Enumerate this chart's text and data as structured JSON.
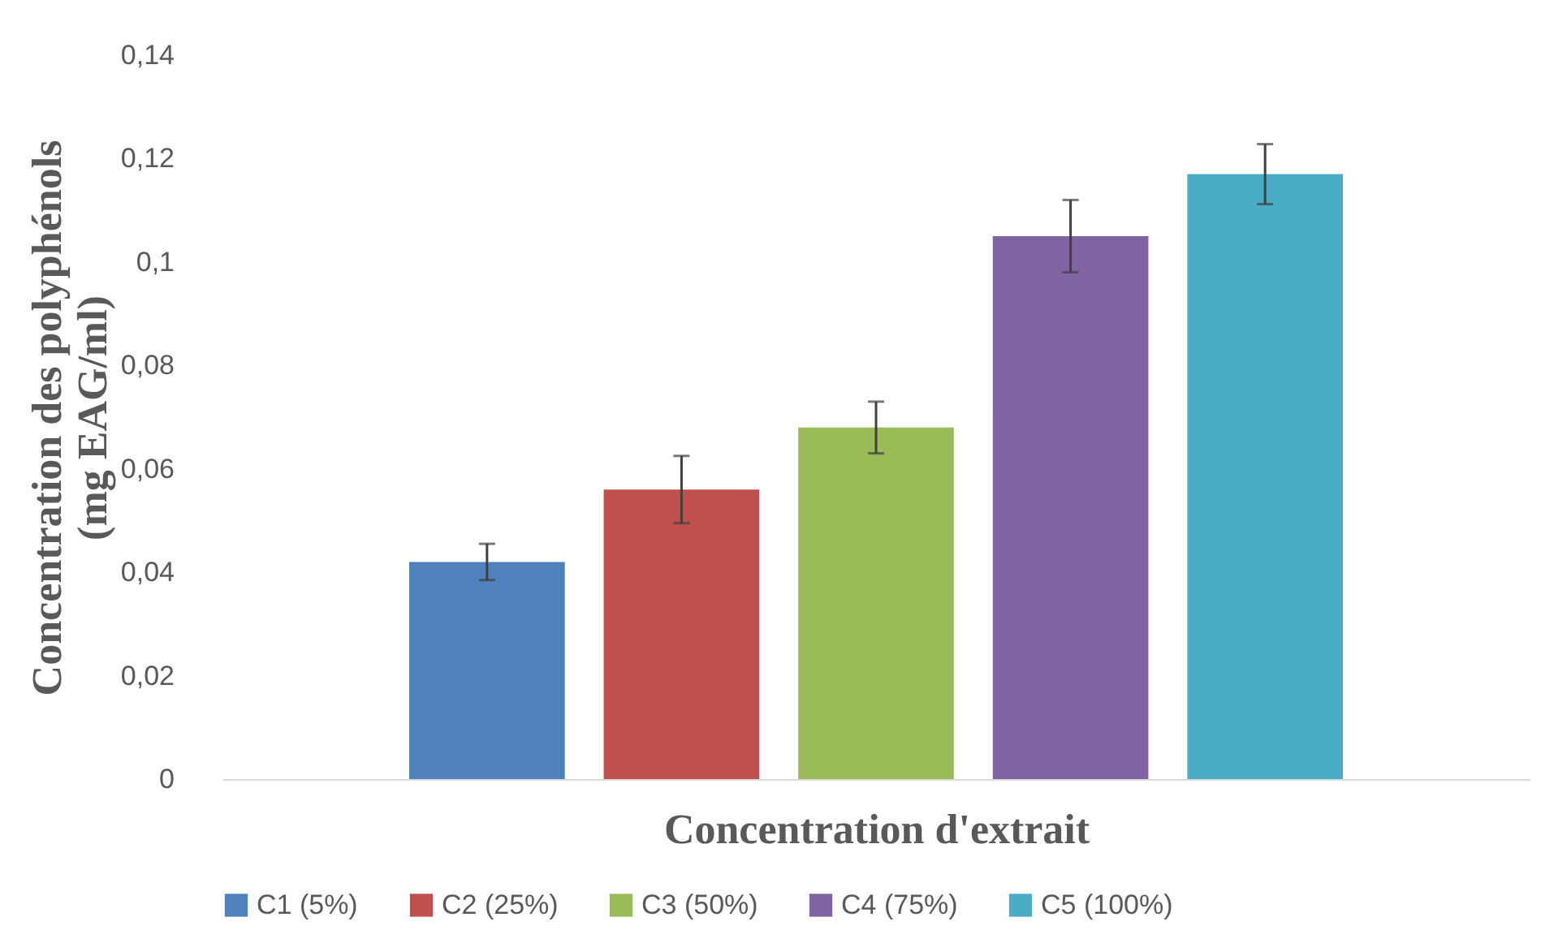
{
  "chart_data": {
    "type": "bar",
    "xlabel": "Concentration d'extrait",
    "ylabel": "Concentration des polyphénols\n(mg EAG/ml)",
    "categories": [
      null
    ],
    "series": [
      {
        "name": "C1 (5%)",
        "color": "#4f81bd",
        "values": [
          0.042
        ],
        "errors": [
          0.0035
        ]
      },
      {
        "name": "C2 (25%)",
        "color": "#c0504d",
        "values": [
          0.056
        ],
        "errors": [
          0.0065
        ]
      },
      {
        "name": "C3 (50%)",
        "color": "#9bbb59",
        "values": [
          0.068
        ],
        "errors": [
          0.005
        ]
      },
      {
        "name": "C4 (75%)",
        "color": "#8064a2",
        "values": [
          0.105
        ],
        "errors": [
          0.007
        ]
      },
      {
        "name": "C5 (100%)",
        "color": "#4bacc6",
        "values": [
          0.117
        ],
        "errors": [
          0.0058
        ]
      }
    ],
    "ylim": [
      0,
      0.14
    ],
    "yticks": [
      0,
      {
        "value": 0.02,
        "label": "0,02"
      },
      {
        "value": 0.04,
        "label": "0,04"
      },
      {
        "value": 0.06,
        "label": "0,06"
      },
      {
        "value": 0.08,
        "label": "0,08"
      },
      {
        "value": 0.1,
        "label": "0,1"
      },
      {
        "value": 0.12,
        "label": "0,12"
      },
      {
        "value": 0.14,
        "label": "0,14"
      }
    ],
    "grid": false,
    "legend": "bottom",
    "tick_labels": "y"
  }
}
